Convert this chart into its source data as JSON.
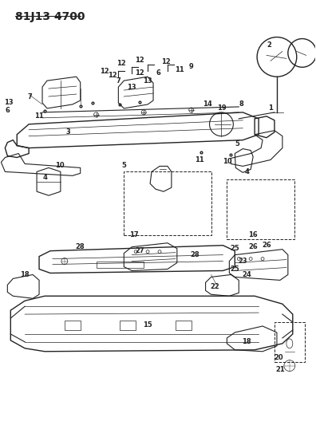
{
  "title": "81J13 4700",
  "bg_color": "#ffffff",
  "title_fontsize": 10,
  "title_bold": true,
  "fig_width": 3.96,
  "fig_height": 5.33,
  "dpi": 100
}
